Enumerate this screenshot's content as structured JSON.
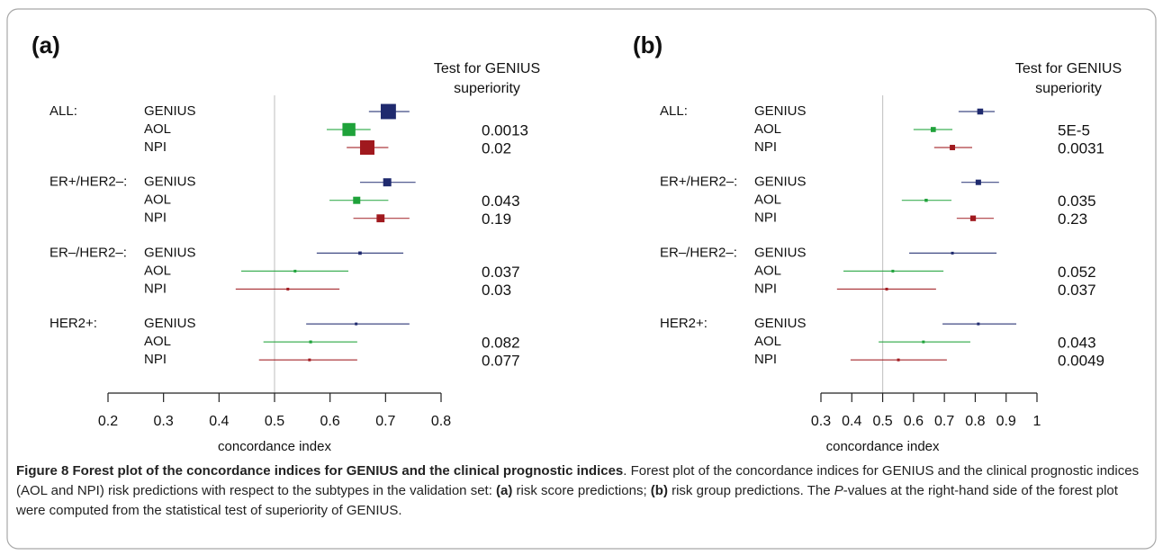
{
  "chart_data": [
    {
      "type": "forest",
      "panel_label": "(a)",
      "header": "Test for GENIUS superiority",
      "xlabel": "concordance index",
      "xlim": [
        0.2,
        0.8
      ],
      "xticks": [
        0.2,
        0.3,
        0.4,
        0.5,
        0.6,
        0.7,
        0.8
      ],
      "reference_line": 0.5,
      "groups": [
        {
          "name": "ALL:",
          "series": [
            {
              "name": "GENIUS",
              "color": "#1f2a6e",
              "value": 0.705,
              "ci": [
                0.67,
                0.743
              ],
              "p_value": null
            },
            {
              "name": "AOL",
              "color": "#1fa23a",
              "value": 0.634,
              "ci": [
                0.594,
                0.673
              ],
              "p_value": "0.0013"
            },
            {
              "name": "NPI",
              "color": "#a0191e",
              "value": 0.667,
              "ci": [
                0.63,
                0.705
              ],
              "p_value": "0.02"
            }
          ]
        },
        {
          "name": "ER+/HER2–:",
          "series": [
            {
              "name": "GENIUS",
              "color": "#1f2a6e",
              "value": 0.703,
              "ci": [
                0.654,
                0.754
              ],
              "p_value": null
            },
            {
              "name": "AOL",
              "color": "#1fa23a",
              "value": 0.648,
              "ci": [
                0.599,
                0.705
              ],
              "p_value": "0.043"
            },
            {
              "name": "NPI",
              "color": "#a0191e",
              "value": 0.691,
              "ci": [
                0.642,
                0.743
              ],
              "p_value": "0.19"
            }
          ]
        },
        {
          "name": "ER–/HER2–:",
          "series": [
            {
              "name": "GENIUS",
              "color": "#1f2a6e",
              "value": 0.654,
              "ci": [
                0.576,
                0.732
              ],
              "p_value": null
            },
            {
              "name": "AOL",
              "color": "#1fa23a",
              "value": 0.537,
              "ci": [
                0.44,
                0.633
              ],
              "p_value": "0.037"
            },
            {
              "name": "NPI",
              "color": "#a0191e",
              "value": 0.524,
              "ci": [
                0.43,
                0.617
              ],
              "p_value": "0.03"
            }
          ]
        },
        {
          "name": "HER2+:",
          "series": [
            {
              "name": "GENIUS",
              "color": "#1f2a6e",
              "value": 0.647,
              "ci": [
                0.557,
                0.743
              ],
              "p_value": null
            },
            {
              "name": "AOL",
              "color": "#1fa23a",
              "value": 0.565,
              "ci": [
                0.48,
                0.649
              ],
              "p_value": "0.082"
            },
            {
              "name": "NPI",
              "color": "#a0191e",
              "value": 0.563,
              "ci": [
                0.472,
                0.649
              ],
              "p_value": "0.077"
            }
          ]
        }
      ]
    },
    {
      "type": "forest",
      "panel_label": "(b)",
      "header": "Test for GENIUS superiority",
      "xlabel": "concordance index",
      "xlim": [
        0.3,
        1
      ],
      "xticks": [
        0.3,
        0.4,
        0.5,
        0.6,
        0.7,
        0.8,
        0.9,
        1
      ],
      "reference_line": 0.5,
      "groups": [
        {
          "name": "ALL:",
          "series": [
            {
              "name": "GENIUS",
              "color": "#1f2a6e",
              "value": 0.816,
              "ci": [
                0.746,
                0.863
              ],
              "p_value": null
            },
            {
              "name": "AOL",
              "color": "#1fa23a",
              "value": 0.664,
              "ci": [
                0.6,
                0.726
              ],
              "p_value": "5E-5"
            },
            {
              "name": "NPI",
              "color": "#a0191e",
              "value": 0.726,
              "ci": [
                0.667,
                0.79
              ],
              "p_value": "0.0031"
            }
          ]
        },
        {
          "name": "ER+/HER2–:",
          "series": [
            {
              "name": "GENIUS",
              "color": "#1f2a6e",
              "value": 0.81,
              "ci": [
                0.755,
                0.877
              ],
              "p_value": null
            },
            {
              "name": "AOL",
              "color": "#1fa23a",
              "value": 0.641,
              "ci": [
                0.562,
                0.723
              ],
              "p_value": "0.035"
            },
            {
              "name": "NPI",
              "color": "#a0191e",
              "value": 0.793,
              "ci": [
                0.74,
                0.86
              ],
              "p_value": "0.23"
            }
          ]
        },
        {
          "name": "ER–/HER2–:",
          "series": [
            {
              "name": "GENIUS",
              "color": "#1f2a6e",
              "value": 0.726,
              "ci": [
                0.586,
                0.869
              ],
              "p_value": null
            },
            {
              "name": "AOL",
              "color": "#1fa23a",
              "value": 0.533,
              "ci": [
                0.373,
                0.697
              ],
              "p_value": "0.052"
            },
            {
              "name": "NPI",
              "color": "#a0191e",
              "value": 0.513,
              "ci": [
                0.352,
                0.673
              ],
              "p_value": "0.037"
            }
          ]
        },
        {
          "name": "HER2+:",
          "series": [
            {
              "name": "GENIUS",
              "color": "#1f2a6e",
              "value": 0.81,
              "ci": [
                0.694,
                0.933
              ],
              "p_value": null
            },
            {
              "name": "AOL",
              "color": "#1fa23a",
              "value": 0.632,
              "ci": [
                0.487,
                0.784
              ],
              "p_value": "0.043"
            },
            {
              "name": "NPI",
              "color": "#a0191e",
              "value": 0.551,
              "ci": [
                0.396,
                0.708
              ],
              "p_value": "0.0049"
            }
          ]
        }
      ]
    }
  ],
  "caption": {
    "segments": [
      "Figure 8 Forest plot of the concordance indices for GENIUS and the clinical prognostic indices",
      ". Forest plot of the concordance indices for GENIUS and the clinical prognostic indices (AOL and NPI) risk predictions with respect to the subtypes in the validation set: ",
      "(a)",
      " risk score predictions; ",
      "(b)",
      " risk group predictions. The ",
      "P",
      "-values at the right-hand side of the forest plot were computed from the statistical test of superiority of GENIUS."
    ]
  }
}
